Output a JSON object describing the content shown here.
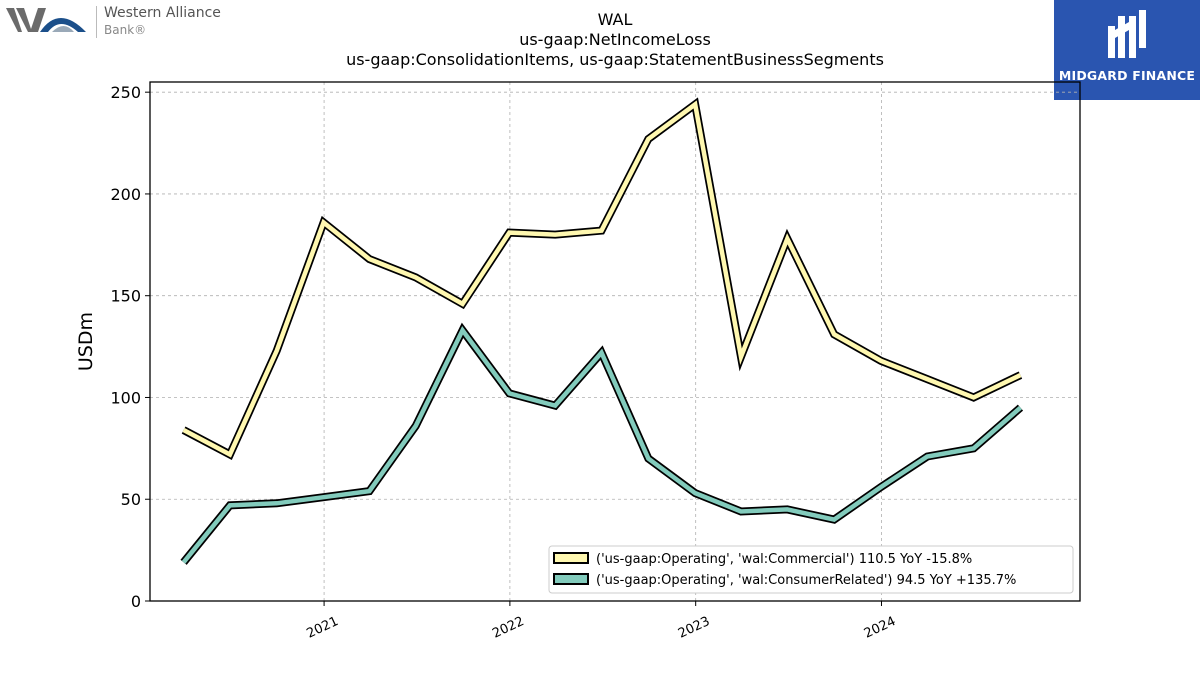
{
  "branding": {
    "left_logo_line1": "Western Alliance",
    "left_logo_line2": "Bank®",
    "right_logo_text": "MIDGARD FINANCE"
  },
  "colors": {
    "series_commercial": "#fff8b0",
    "series_consumer": "#82cbbc",
    "outline": "#000000",
    "midgard_bg": "#2a55b0"
  },
  "chart_data": {
    "type": "line",
    "title_lines": [
      "WAL",
      "us-gaap:NetIncomeLoss",
      "us-gaap:ConsolidationItems, us-gaap:StatementBusinessSegments"
    ],
    "xlabel": "",
    "ylabel": "USDm",
    "ylim": [
      0,
      255
    ],
    "yticks": [
      0,
      50,
      100,
      150,
      200,
      250
    ],
    "xticks": [
      "2021",
      "2022",
      "2023",
      "2024"
    ],
    "grid": true,
    "legend_position": "lower-right",
    "x": [
      "2020-03-31",
      "2020-06-30",
      "2020-09-30",
      "2020-12-31",
      "2021-03-31",
      "2021-06-30",
      "2021-09-30",
      "2021-12-31",
      "2022-03-31",
      "2022-06-30",
      "2022-09-30",
      "2022-12-31",
      "2023-03-31",
      "2023-06-30",
      "2023-09-30",
      "2023-12-31",
      "2024-03-31",
      "2024-06-30",
      "2024-09-30"
    ],
    "series": [
      {
        "name": "('us-gaap:Operating', 'wal:Commercial') 110.5 YoY -15.8%",
        "values": [
          84,
          72,
          123,
          186,
          168,
          159,
          146,
          181,
          180,
          182,
          227,
          244,
          120,
          178,
          131,
          118,
          109,
          100,
          111
        ]
      },
      {
        "name": "('us-gaap:Operating', 'wal:ConsumerRelated') 94.5 YoY +135.7%",
        "values": [
          19,
          47,
          48,
          51,
          54,
          86,
          133,
          102,
          96,
          122,
          70,
          53,
          44,
          45,
          40,
          56,
          71,
          75,
          95
        ]
      }
    ]
  }
}
